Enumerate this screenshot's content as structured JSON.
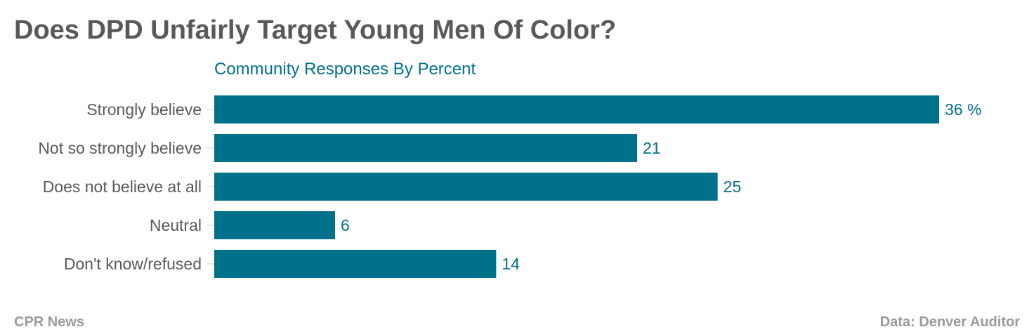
{
  "chart_data": {
    "type": "bar",
    "orientation": "horizontal",
    "title": "Does DPD Unfairly Target Young Men Of Color?",
    "subtitle": "Community Responses By Percent",
    "categories": [
      "Strongly believe",
      "Not so strongly believe",
      "Does not believe at all",
      "Neutral",
      "Don't know/refused"
    ],
    "values": [
      36,
      21,
      25,
      6,
      14
    ],
    "value_labels": [
      "36 %",
      "21",
      "25",
      "6",
      "14"
    ],
    "xlim": [
      0,
      36
    ],
    "grid": false,
    "colors": {
      "bar": "#00718a",
      "value_label": "#00718a",
      "subtitle": "#00718a",
      "title": "#595959",
      "category_label": "#595959",
      "footer": "#9a9a9a"
    }
  },
  "footer": {
    "source_left": "CPR News",
    "source_right": "Data: Denver Auditor"
  }
}
